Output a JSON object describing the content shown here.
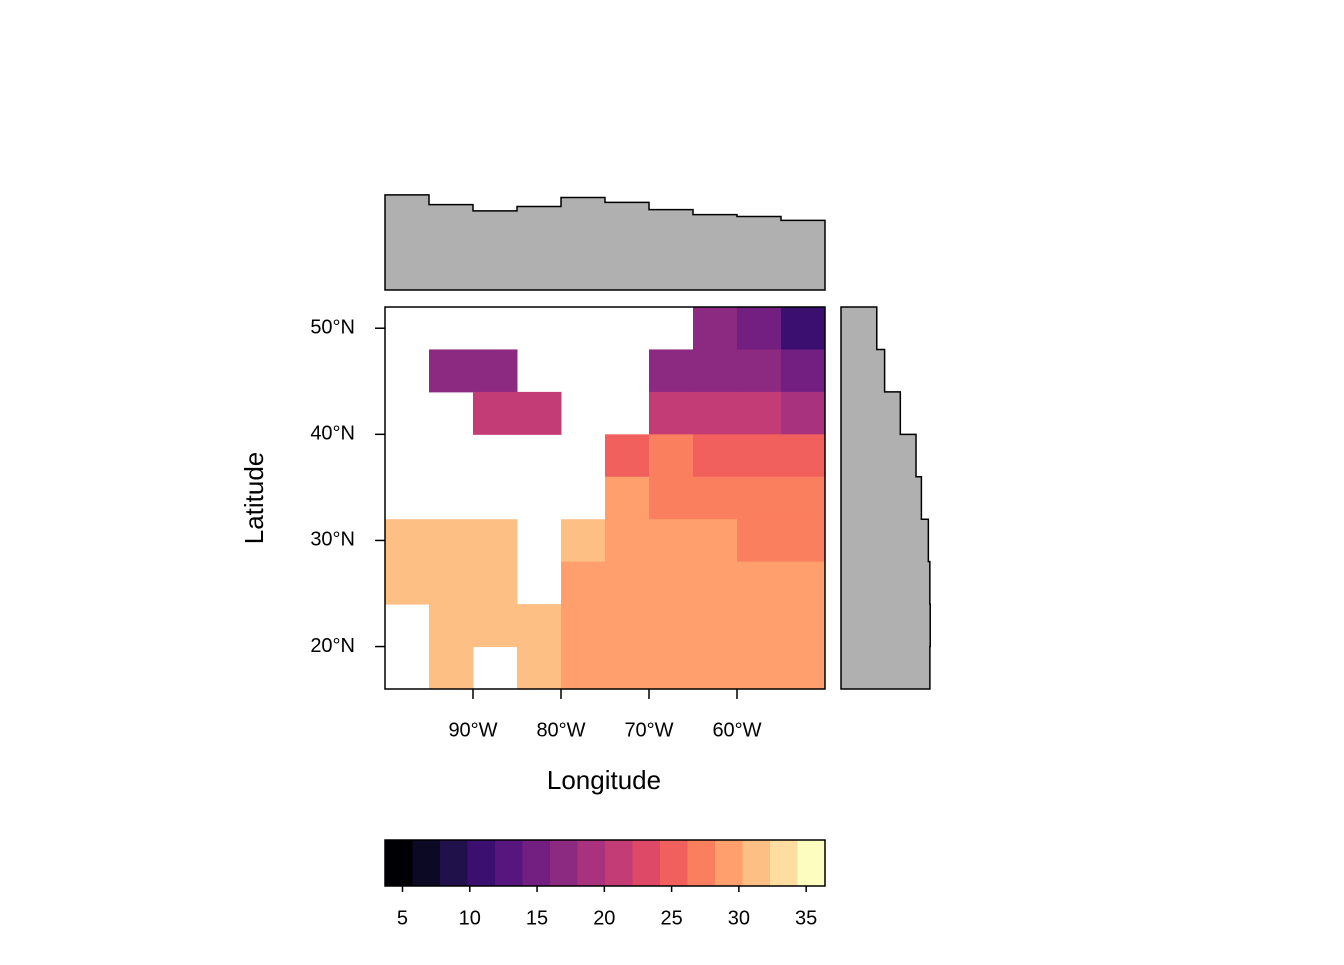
{
  "chart_data": {
    "type": "raster",
    "x_label": "Longitude",
    "y_label": "Latitude",
    "xlim": [
      -100,
      -50
    ],
    "ylim": [
      16,
      52
    ],
    "xticks": [
      {
        "value": -90,
        "label": "90°W"
      },
      {
        "value": -80,
        "label": "80°W"
      },
      {
        "value": -70,
        "label": "70°W"
      },
      {
        "value": -60,
        "label": "60°W"
      }
    ],
    "yticks": [
      {
        "value": 20,
        "label": "20°N"
      },
      {
        "value": 30,
        "label": "30°N"
      },
      {
        "value": 40,
        "label": "40°N"
      },
      {
        "value": 50,
        "label": "50°N"
      }
    ],
    "x": [
      -97.5,
      -92.5,
      -87.5,
      -82.5,
      -77.5,
      -72.5,
      -67.5,
      -62.5,
      -57.5,
      -52.5
    ],
    "y": [
      50,
      46,
      42,
      38,
      34,
      30,
      26,
      22,
      18
    ],
    "values": [
      [
        null,
        null,
        null,
        null,
        null,
        null,
        null,
        17,
        15,
        11
      ],
      [
        null,
        17,
        17,
        null,
        null,
        null,
        18,
        18,
        16,
        14
      ],
      [
        null,
        null,
        22,
        21,
        null,
        null,
        22,
        21,
        22,
        20
      ],
      [
        null,
        null,
        null,
        null,
        null,
        25,
        27,
        26,
        26,
        26
      ],
      [
        null,
        null,
        null,
        null,
        null,
        29,
        28,
        27,
        27,
        27
      ],
      [
        31,
        31,
        31,
        null,
        31,
        29,
        29,
        29,
        28,
        28
      ],
      [
        31,
        31,
        31,
        null,
        30,
        30,
        30,
        30,
        29,
        29
      ],
      [
        null,
        31,
        31,
        31,
        30,
        30,
        30,
        30,
        30,
        29
      ],
      [
        null,
        31,
        null,
        31,
        30,
        30,
        30,
        30,
        30,
        29
      ]
    ],
    "colorbar": {
      "lim": [
        3.7,
        36.4
      ],
      "ticks": [
        5,
        10,
        15,
        20,
        25,
        30,
        35
      ],
      "colors": [
        "#000004",
        "#0b0924",
        "#20114b",
        "#3b0f70",
        "#57157e",
        "#721f81",
        "#8c2981",
        "#a8327d",
        "#c43c75",
        "#de4968",
        "#f1605d",
        "#fa7f5e",
        "#fe9f6d",
        "#febf84",
        "#fdde a0",
        "#fcfdbf"
      ]
    },
    "margin_color": "#b0b0b0"
  }
}
